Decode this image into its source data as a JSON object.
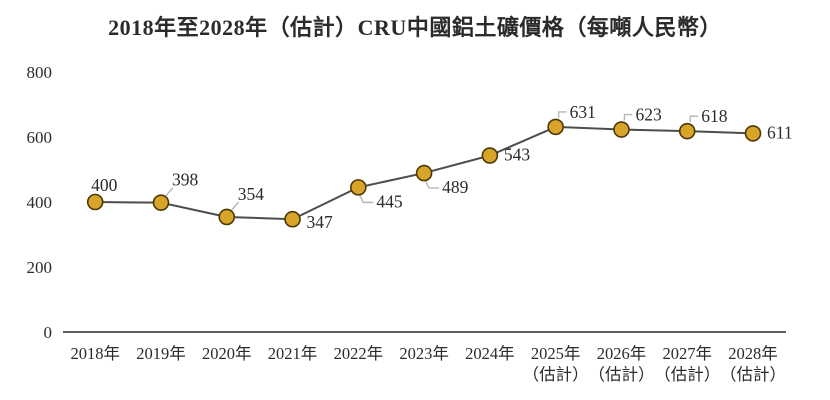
{
  "title": "2018年至2028年（估計）CRU中國鋁土礦價格（每噸人民幣）",
  "chart_data": {
    "type": "line",
    "title": "2018年至2028年（估計）CRU中國鋁土礦價格（每噸人民幣）",
    "categories": [
      "2018年",
      "2019年",
      "2020年",
      "2021年",
      "2022年",
      "2023年",
      "2024年",
      "2025年",
      "2026年",
      "2027年",
      "2028年"
    ],
    "category_sublabels": [
      "",
      "",
      "",
      "",
      "",
      "",
      "",
      "（估計）",
      "（估計）",
      "（估計）",
      "（估計）"
    ],
    "values": [
      400,
      398,
      354,
      347,
      445,
      489,
      543,
      631,
      623,
      618,
      611
    ],
    "yticks": [
      0,
      200,
      400,
      600,
      800
    ],
    "ylim": [
      0,
      800
    ],
    "grid": false,
    "legend": "none",
    "xlabel": "",
    "ylabel": "",
    "colors": {
      "marker_fill": "#D9A42A",
      "marker_stroke": "#4A3905",
      "line": "#4D4D4D",
      "leader": "#B5B5B5",
      "ink": "#2B2B2B"
    },
    "label_placements": [
      "above",
      "diag-above",
      "diag-above",
      "right-below",
      "elbow-below",
      "elbow-below",
      "right",
      "elbow-above",
      "elbow-above",
      "elbow-above",
      "right"
    ]
  }
}
